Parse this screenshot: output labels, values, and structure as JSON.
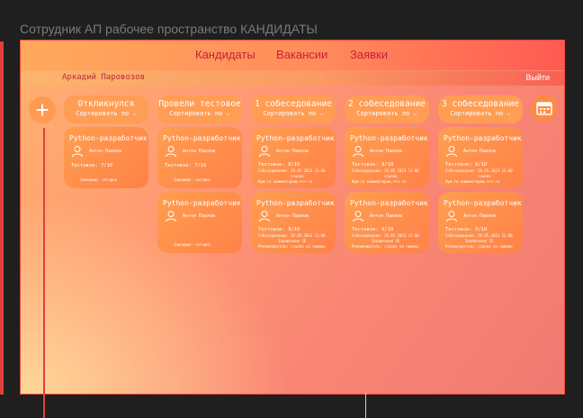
{
  "window_title": "Сотрудник АП рабочее пространство КАНДИДАТЫ",
  "nav": {
    "candidates": "Кандидаты",
    "vacancies": "Вакансии",
    "requests": "Заявки"
  },
  "user": {
    "name": "Аркадий Паровозов",
    "logout": "Выйти"
  },
  "add_button": "+",
  "columns": [
    {
      "title": "Откликнулся",
      "sort": "Сортировать по",
      "cards": [
        {
          "title": "Python-разработчик",
          "name": "Антон Павлов",
          "test": "Тестовое: 7/10",
          "footer": "Завершил: сегодня"
        }
      ]
    },
    {
      "title": "Провели тестовое",
      "sort": "Сортировать по",
      "cards": [
        {
          "title": "Python-разработчик",
          "name": "Антон Павлов",
          "test": "Тестовое: 7/10",
          "footer": "Завершил: сегодня"
        },
        {
          "title": "Python-разработчик",
          "name": "Антон Павлов",
          "test": "",
          "footer": "Завершил: сегодня"
        }
      ]
    },
    {
      "title": "1 собеседование",
      "sort": "Сортировать по",
      "cards": [
        {
          "title": "Python-разработчик",
          "name": "Антон Павлов",
          "test": "Тестовое: 8/10",
          "interview": "Собеседование: 20.05.2023 12:00",
          "extra": "Нуж-то комментарии,ччч-то",
          "sub": "ссылка"
        },
        {
          "title": "Python-разработчик",
          "name": "Антон Павлов",
          "test": "Тестовое: 9/10",
          "interview": "Собеседование: 20.05.2023 12:00",
          "extra": "Рекомендатель: ссылка на пример",
          "sub": "Заключение 1Е"
        }
      ]
    },
    {
      "title": "2 собеседование",
      "sort": "Сортировать по",
      "cards": [
        {
          "title": "Python-разработчик",
          "name": "Антон Павлов",
          "test": "Тестовое: 8/10",
          "interview": "Собеседование: 20.05.2023 12:00",
          "extra": "Нуж-то комментарии,ччч-то",
          "sub": "ссылка"
        },
        {
          "title": "Python-разработчик",
          "name": "Антон Павлов",
          "test": "Тестовое: 9/10",
          "interview": "Собеседование: 20.05.2023 12:00",
          "extra": "Рекомендатель: ссылка на пример",
          "sub": "Заключение 1Е"
        }
      ]
    },
    {
      "title": "3 собеседование",
      "sort": "Сортировать по",
      "cards": [
        {
          "title": "Python-разработчик",
          "name": "Антон Павлов",
          "test": "Тестовое: 8/10",
          "interview": "Собеседование: 20.05.2023 12:00",
          "extra": "Нуж-то комментарии,ччч-то",
          "sub": "ссылка"
        },
        {
          "title": "Python-разработчик",
          "name": "Антон Павлов",
          "test": "Тестовое: 9/10",
          "interview": "Собеседование: 20.05.2023 12:00",
          "extra": "Рекомендатель: ссылка на пример",
          "sub": "Заключение 1Е"
        }
      ]
    }
  ],
  "colors": {
    "accent": "#ff9d55",
    "nav_text": "#c8203a",
    "frame_border": "#f04a3f"
  }
}
